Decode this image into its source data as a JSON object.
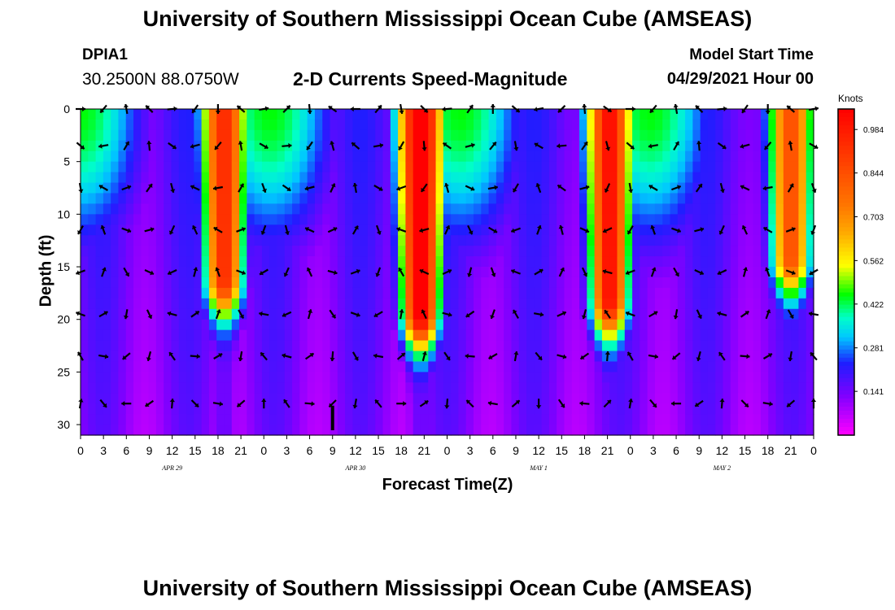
{
  "header": {
    "title": "University of Southern Mississippi Ocean Cube (AMSEAS)",
    "station_id": "DPIA1",
    "location": "30.2500N  88.0750W",
    "chart_title": "2-D Currents Speed-Magnitude",
    "model_label": "Model Start Time",
    "model_date": "04/29/2021 Hour 00"
  },
  "footer": {
    "title": "University of Southern Mississippi Ocean Cube (AMSEAS)"
  },
  "colors": {
    "low": "#ff00ff",
    "mid_low": "#0000ff",
    "mid": "#00ff00",
    "mid_high": "#ffff00",
    "high": "#ff0000"
  },
  "chart_data": {
    "type": "heatmap",
    "title": "2-D Currents Speed-Magnitude",
    "xlabel": "Forecast Time(Z)",
    "ylabel": "Depth (ft)",
    "x_range_hours": [
      0,
      96
    ],
    "ylim": [
      0,
      31
    ],
    "x_tick_labels": [
      "0",
      "3",
      "6",
      "9",
      "12",
      "15",
      "18",
      "21",
      "0",
      "3",
      "6",
      "9",
      "12",
      "15",
      "18",
      "21",
      "0",
      "3",
      "6",
      "9",
      "12",
      "15",
      "18",
      "21",
      "0",
      "3",
      "6",
      "9",
      "12",
      "15",
      "18",
      "21",
      "0"
    ],
    "date_labels": [
      {
        "label": "APR 29",
        "hour": 12
      },
      {
        "label": "APR 30",
        "hour": 36
      },
      {
        "label": "MAY 1",
        "hour": 60
      },
      {
        "label": "MAY 2",
        "hour": 84
      }
    ],
    "y_ticks": [
      0,
      5,
      10,
      15,
      20,
      25,
      30
    ],
    "current_time_marker_hour": 33,
    "colorbar": {
      "units": "Knots",
      "labels": [
        0.984,
        0.844,
        0.703,
        0.562,
        0.422,
        0.281,
        0.141
      ],
      "range": [
        0,
        1.05
      ]
    },
    "speed_peaks_knots": [
      {
        "hour": 19,
        "speed": 0.8,
        "max_depth_ft": 16
      },
      {
        "hour": 45,
        "speed": 1.0,
        "max_depth_ft": 19
      },
      {
        "hour": 70,
        "speed": 0.88,
        "max_depth_ft": 18
      },
      {
        "hour": 94,
        "speed": 0.7,
        "max_depth_ft": 14
      }
    ],
    "vector_depths_ft": [
      0,
      3.5,
      7.5,
      11.5,
      15.5,
      19.5,
      23.5,
      28
    ]
  }
}
